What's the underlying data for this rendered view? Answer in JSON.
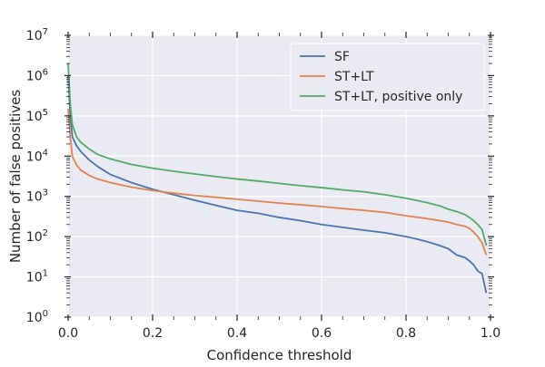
{
  "chart_data": {
    "type": "line",
    "title": "",
    "xlabel": "Confidence threshold",
    "ylabel": "Number of false positives",
    "xlim": [
      0.0,
      1.0
    ],
    "ylim": [
      1,
      10000000
    ],
    "yscale": "log",
    "grid": true,
    "legend_position": "upper-right",
    "background_color": "#eaeaf2",
    "grid_color": "#ffffff",
    "x_ticks": [
      {
        "value": 0.0,
        "label": "0.0"
      },
      {
        "value": 0.2,
        "label": "0.2"
      },
      {
        "value": 0.4,
        "label": "0.4"
      },
      {
        "value": 0.6,
        "label": "0.6"
      },
      {
        "value": 0.8,
        "label": "0.8"
      },
      {
        "value": 1.0,
        "label": "1.0"
      }
    ],
    "y_ticks": [
      {
        "value": 1,
        "base": "10",
        "exp": "0"
      },
      {
        "value": 10,
        "base": "10",
        "exp": "1"
      },
      {
        "value": 100,
        "base": "10",
        "exp": "2"
      },
      {
        "value": 1000,
        "base": "10",
        "exp": "3"
      },
      {
        "value": 10000,
        "base": "10",
        "exp": "4"
      },
      {
        "value": 100000,
        "base": "10",
        "exp": "5"
      },
      {
        "value": 1000000,
        "base": "10",
        "exp": "6"
      },
      {
        "value": 10000000,
        "base": "10",
        "exp": "7"
      }
    ],
    "series": [
      {
        "name": "SF",
        "color": "#4c72b0",
        "x": [
          0.0,
          0.005,
          0.01,
          0.02,
          0.03,
          0.05,
          0.07,
          0.1,
          0.15,
          0.2,
          0.25,
          0.3,
          0.35,
          0.4,
          0.45,
          0.5,
          0.55,
          0.6,
          0.65,
          0.7,
          0.75,
          0.8,
          0.82,
          0.85,
          0.88,
          0.9,
          0.92,
          0.94,
          0.95,
          0.96,
          0.97,
          0.98,
          0.99
        ],
        "y": [
          1000000,
          100000,
          30000,
          18000,
          13000,
          8000,
          5500,
          3500,
          2200,
          1500,
          1100,
          800,
          600,
          450,
          380,
          300,
          250,
          200,
          170,
          145,
          125,
          100,
          90,
          75,
          60,
          50,
          35,
          30,
          25,
          20,
          14,
          12,
          4
        ]
      },
      {
        "name": "ST+LT",
        "color": "#dd8452",
        "x": [
          0.0,
          0.005,
          0.01,
          0.02,
          0.03,
          0.05,
          0.07,
          0.1,
          0.15,
          0.2,
          0.25,
          0.3,
          0.35,
          0.4,
          0.45,
          0.5,
          0.55,
          0.6,
          0.65,
          0.7,
          0.75,
          0.8,
          0.85,
          0.9,
          0.92,
          0.94,
          0.95,
          0.96,
          0.97,
          0.98,
          0.99
        ],
        "y": [
          150000,
          30000,
          10000,
          6000,
          4500,
          3300,
          2700,
          2200,
          1700,
          1400,
          1200,
          1050,
          950,
          850,
          760,
          680,
          620,
          560,
          500,
          450,
          400,
          330,
          280,
          230,
          200,
          180,
          160,
          130,
          100,
          70,
          35
        ]
      },
      {
        "name": "ST+LT, positive only",
        "color": "#55a868",
        "x": [
          0.0,
          0.005,
          0.01,
          0.02,
          0.03,
          0.05,
          0.07,
          0.1,
          0.15,
          0.2,
          0.25,
          0.3,
          0.35,
          0.4,
          0.45,
          0.5,
          0.55,
          0.6,
          0.65,
          0.7,
          0.75,
          0.8,
          0.85,
          0.88,
          0.9,
          0.92,
          0.94,
          0.95,
          0.96,
          0.97,
          0.98,
          0.99
        ],
        "y": [
          2000000,
          200000,
          60000,
          30000,
          22000,
          15000,
          11000,
          8500,
          6200,
          5000,
          4200,
          3600,
          3100,
          2700,
          2400,
          2100,
          1850,
          1650,
          1450,
          1300,
          1100,
          900,
          700,
          580,
          480,
          420,
          350,
          300,
          250,
          200,
          150,
          60
        ]
      }
    ]
  }
}
